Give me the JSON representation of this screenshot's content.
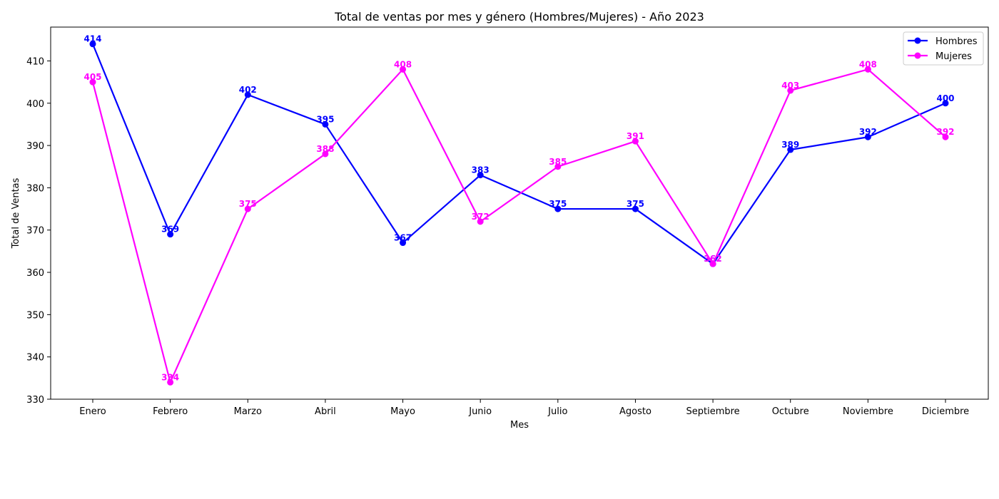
{
  "chart_data": {
    "type": "line",
    "title": "Total de ventas por mes y género (Hombres/Mujeres) - Año 2023",
    "xlabel": "Mes",
    "ylabel": "Total de Ventas",
    "categories": [
      "Enero",
      "Febrero",
      "Marzo",
      "Abril",
      "Mayo",
      "Junio",
      "Julio",
      "Agosto",
      "Septiembre",
      "Octubre",
      "Noviembre",
      "Diciembre"
    ],
    "ylim": [
      330,
      418
    ],
    "yticks": [
      330,
      340,
      350,
      360,
      370,
      380,
      390,
      400,
      410
    ],
    "grid": false,
    "legend_position": "top-right",
    "series": [
      {
        "name": "Hombres",
        "color": "#0000ff",
        "values": [
          414,
          369,
          402,
          395,
          367,
          383,
          375,
          375,
          362,
          389,
          392,
          400
        ]
      },
      {
        "name": "Mujeres",
        "color": "#ff00ff",
        "values": [
          405,
          334,
          375,
          388,
          408,
          372,
          385,
          391,
          362,
          403,
          408,
          392
        ]
      }
    ]
  }
}
